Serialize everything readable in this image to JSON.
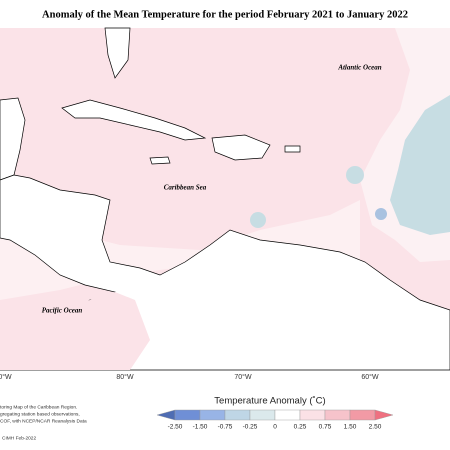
{
  "header": {
    "title": "Anomaly of the Mean Temperature for the period February 2021 to January 2022"
  },
  "map": {
    "labels": [
      "Atlantic Ocean",
      "Caribbean Sea",
      "Pacific Ocean"
    ],
    "longitudes": [
      "0°W",
      "80°W",
      "70°W",
      "60°W"
    ]
  },
  "legend": {
    "title": "Temperature Anomaly (˚C)",
    "ticks": [
      "-2.50",
      "-1.50",
      "-0.75",
      "-0.25",
      "0",
      "0.25",
      "0.75",
      "1.50",
      "2.50"
    ],
    "colors": [
      "#4f6db3",
      "#6f8fd6",
      "#98b4e6",
      "#bfd6e6",
      "#dbe9ec",
      "#ffffff",
      "#fbe1e6",
      "#f6c3cb",
      "#f29aa5",
      "#ef7080"
    ]
  },
  "footnote": {
    "lines": [
      "toring Map of the Caribbean Region.",
      "gregating station based observations,",
      "COF, with NCEP/NCAR Reanalysis Data"
    ],
    "credit": "CIMH Feb-2022"
  }
}
